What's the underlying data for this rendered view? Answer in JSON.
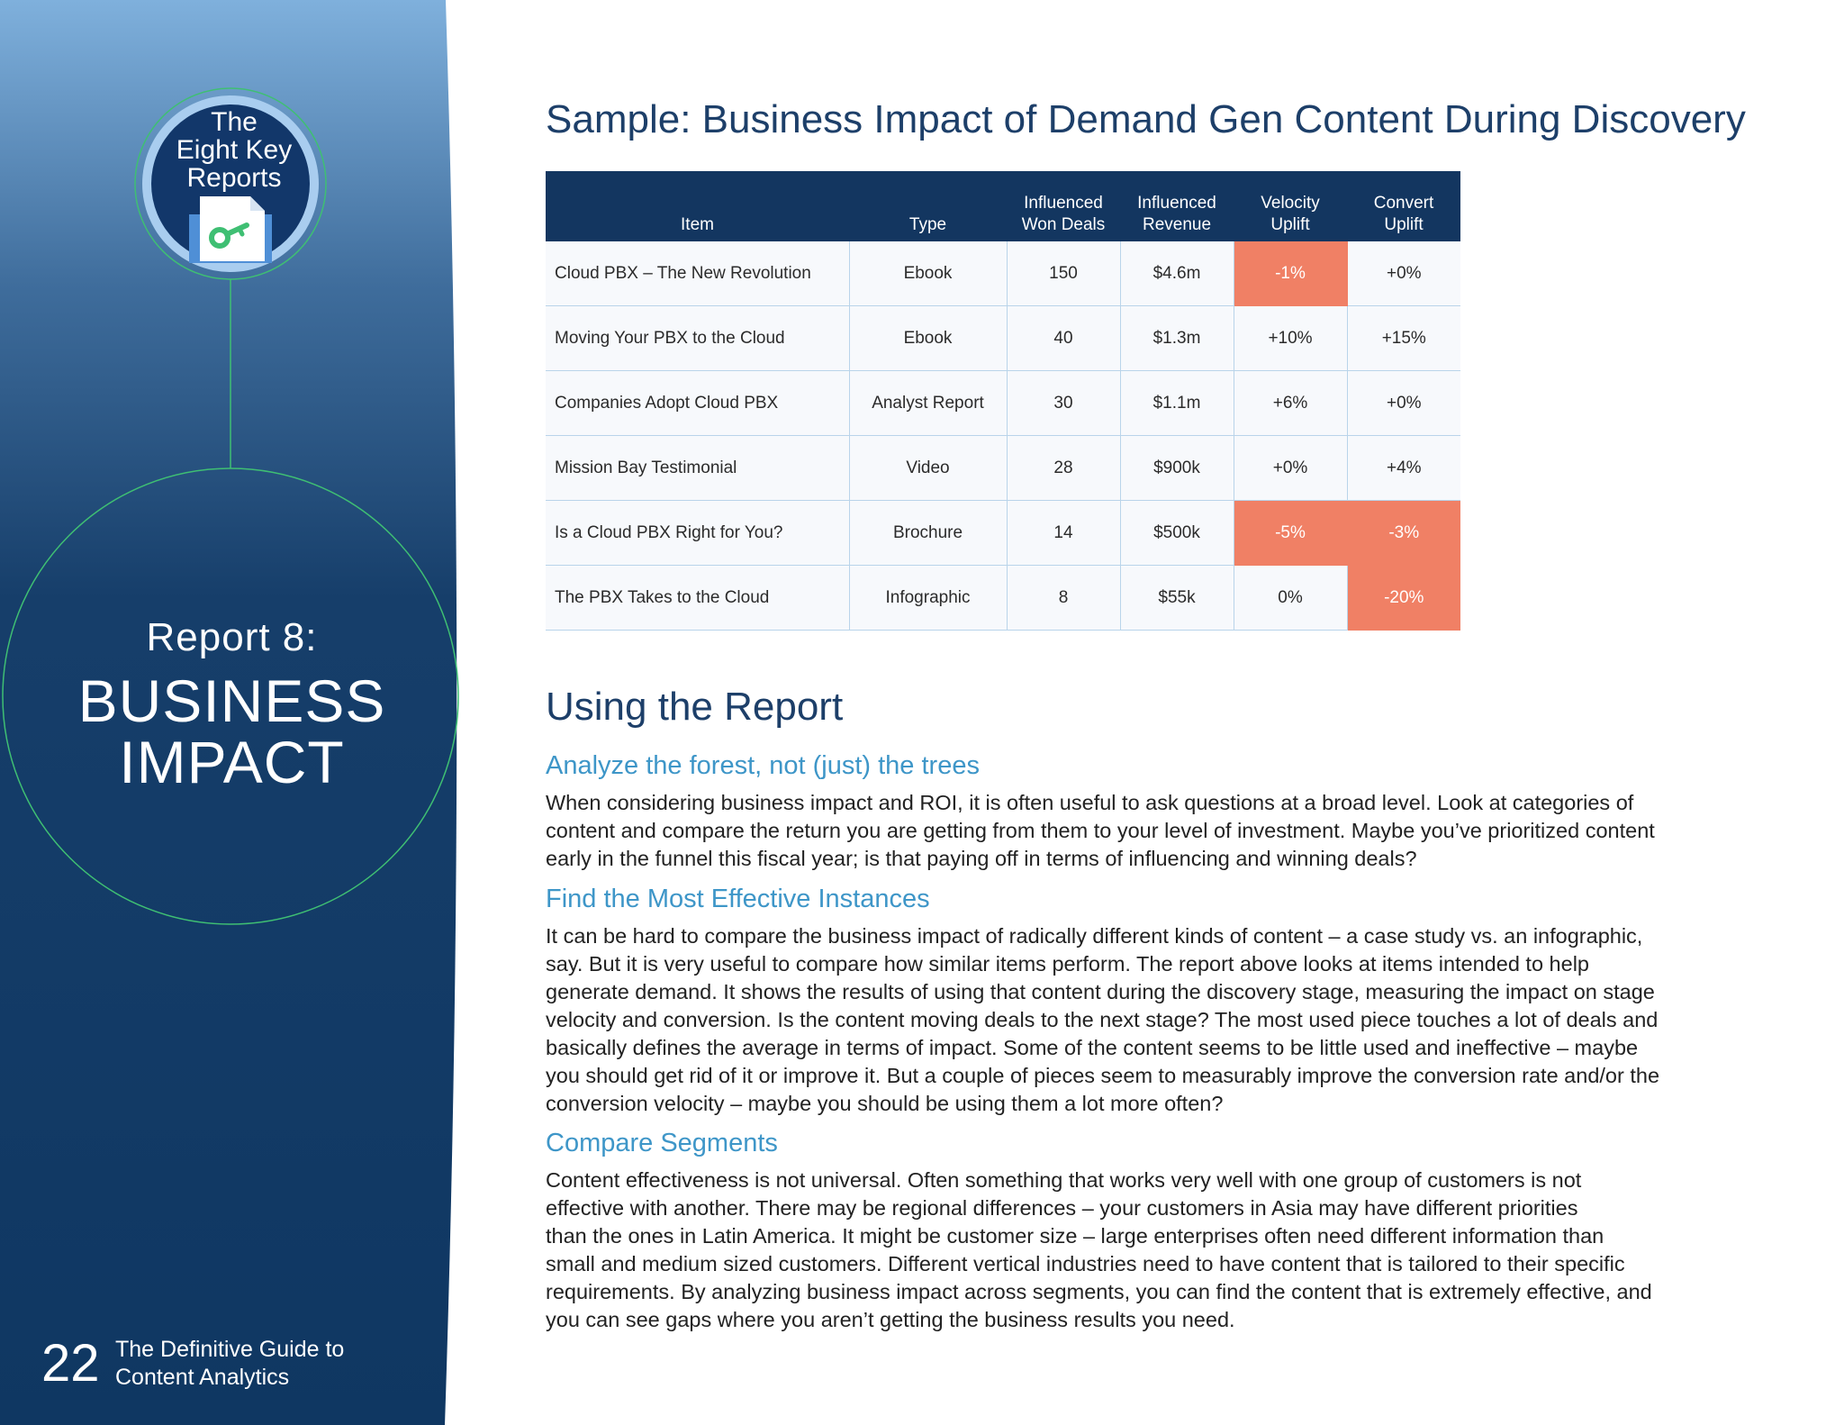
{
  "sidebar": {
    "badge": {
      "lines": [
        "The",
        "Eight Key",
        "Reports"
      ],
      "icon": "key-document-icon"
    },
    "report_number": "Report 8:",
    "report_title": [
      "BUSINESS",
      "IMPACT"
    ],
    "page_number": "22",
    "guide_title": [
      "The Definitive Guide to",
      "Content Analytics"
    ]
  },
  "colors": {
    "sidebar_top": "#7fb0dc",
    "sidebar_bottom": "#0f3762",
    "accent_green": "#3fbf73",
    "table_header": "#133660",
    "negative_cell": "#f08065",
    "subhead": "#3e96c8",
    "heading": "#1d3f69"
  },
  "main": {
    "sample_title": "Sample: Business Impact of Demand Gen Content During Discovery",
    "table": {
      "headers": [
        [
          "Item"
        ],
        [
          "Type"
        ],
        [
          "Influenced",
          "Won Deals"
        ],
        [
          "Influenced",
          "Revenue"
        ],
        [
          "Velocity",
          "Uplift"
        ],
        [
          "Convert",
          "Uplift"
        ]
      ],
      "rows": [
        {
          "item": "Cloud PBX – The New Revolution",
          "type": "Ebook",
          "won_deals": "150",
          "revenue": "$4.6m",
          "velocity": "-1%",
          "convert": "+0%",
          "velocity_negative": true,
          "convert_negative": false
        },
        {
          "item": "Moving Your PBX to the Cloud",
          "type": "Ebook",
          "won_deals": "40",
          "revenue": "$1.3m",
          "velocity": "+10%",
          "convert": "+15%",
          "velocity_negative": false,
          "convert_negative": false
        },
        {
          "item": "Companies Adopt Cloud PBX",
          "type": "Analyst Report",
          "won_deals": "30",
          "revenue": "$1.1m",
          "velocity": "+6%",
          "convert": "+0%",
          "velocity_negative": false,
          "convert_negative": false
        },
        {
          "item": "Mission Bay Testimonial",
          "type": "Video",
          "won_deals": "28",
          "revenue": "$900k",
          "velocity": "+0%",
          "convert": "+4%",
          "velocity_negative": false,
          "convert_negative": false
        },
        {
          "item": "Is a Cloud PBX Right for You?",
          "type": "Brochure",
          "won_deals": "14",
          "revenue": "$500k",
          "velocity": "-5%",
          "convert": "-3%",
          "velocity_negative": true,
          "convert_negative": true
        },
        {
          "item": "The PBX Takes to the Cloud",
          "type": "Infographic",
          "won_deals": "8",
          "revenue": "$55k",
          "velocity": "0%",
          "convert": "-20%",
          "velocity_negative": false,
          "convert_negative": true
        }
      ]
    },
    "using_title": "Using the Report",
    "sections": [
      {
        "heading": "Analyze the forest, not (just) the trees",
        "lines": [
          "When considering business impact and ROI, it is often useful to ask questions at a broad level. Look at categories of",
          "content and compare the return you are getting from them to your level of investment. Maybe you’ve prioritized content",
          "early in the funnel this fiscal year; is that paying off in terms of influencing and winning deals?"
        ]
      },
      {
        "heading": "Find the Most Effective Instances",
        "lines": [
          "It can be hard to compare the business impact of radically different kinds of content – a case study vs. an infographic,",
          "say. But it is very useful to compare how similar items perform. The report above looks at items intended to help",
          "generate demand. It shows the results of using that content during the discovery stage, measuring the impact on stage",
          "velocity and conversion. Is the content moving deals to the next stage? The most used piece touches a lot of deals and",
          "basically defines the average in terms of impact. Some of the content seems to be little used and ineffective – maybe",
          "you should get rid of it or improve it. But a couple of pieces seem to measurably improve the conversion rate and/or the",
          "conversion velocity – maybe you should be using them a lot more often?"
        ]
      },
      {
        "heading": "Compare Segments",
        "lines": [
          "Content effectiveness is not universal. Often something that works very well with one group of customers is not",
          "effective with another. There may be regional differences – your customers in Asia may have different priorities",
          "than the ones in Latin America. It might be customer size – large enterprises often need different information than",
          "small and medium sized customers. Different vertical industries need to have content that is tailored to their specific",
          "requirements. By analyzing business impact across segments, you can find the content that is extremely effective, and",
          "you can see gaps where you aren’t getting the business results you need."
        ]
      }
    ]
  }
}
